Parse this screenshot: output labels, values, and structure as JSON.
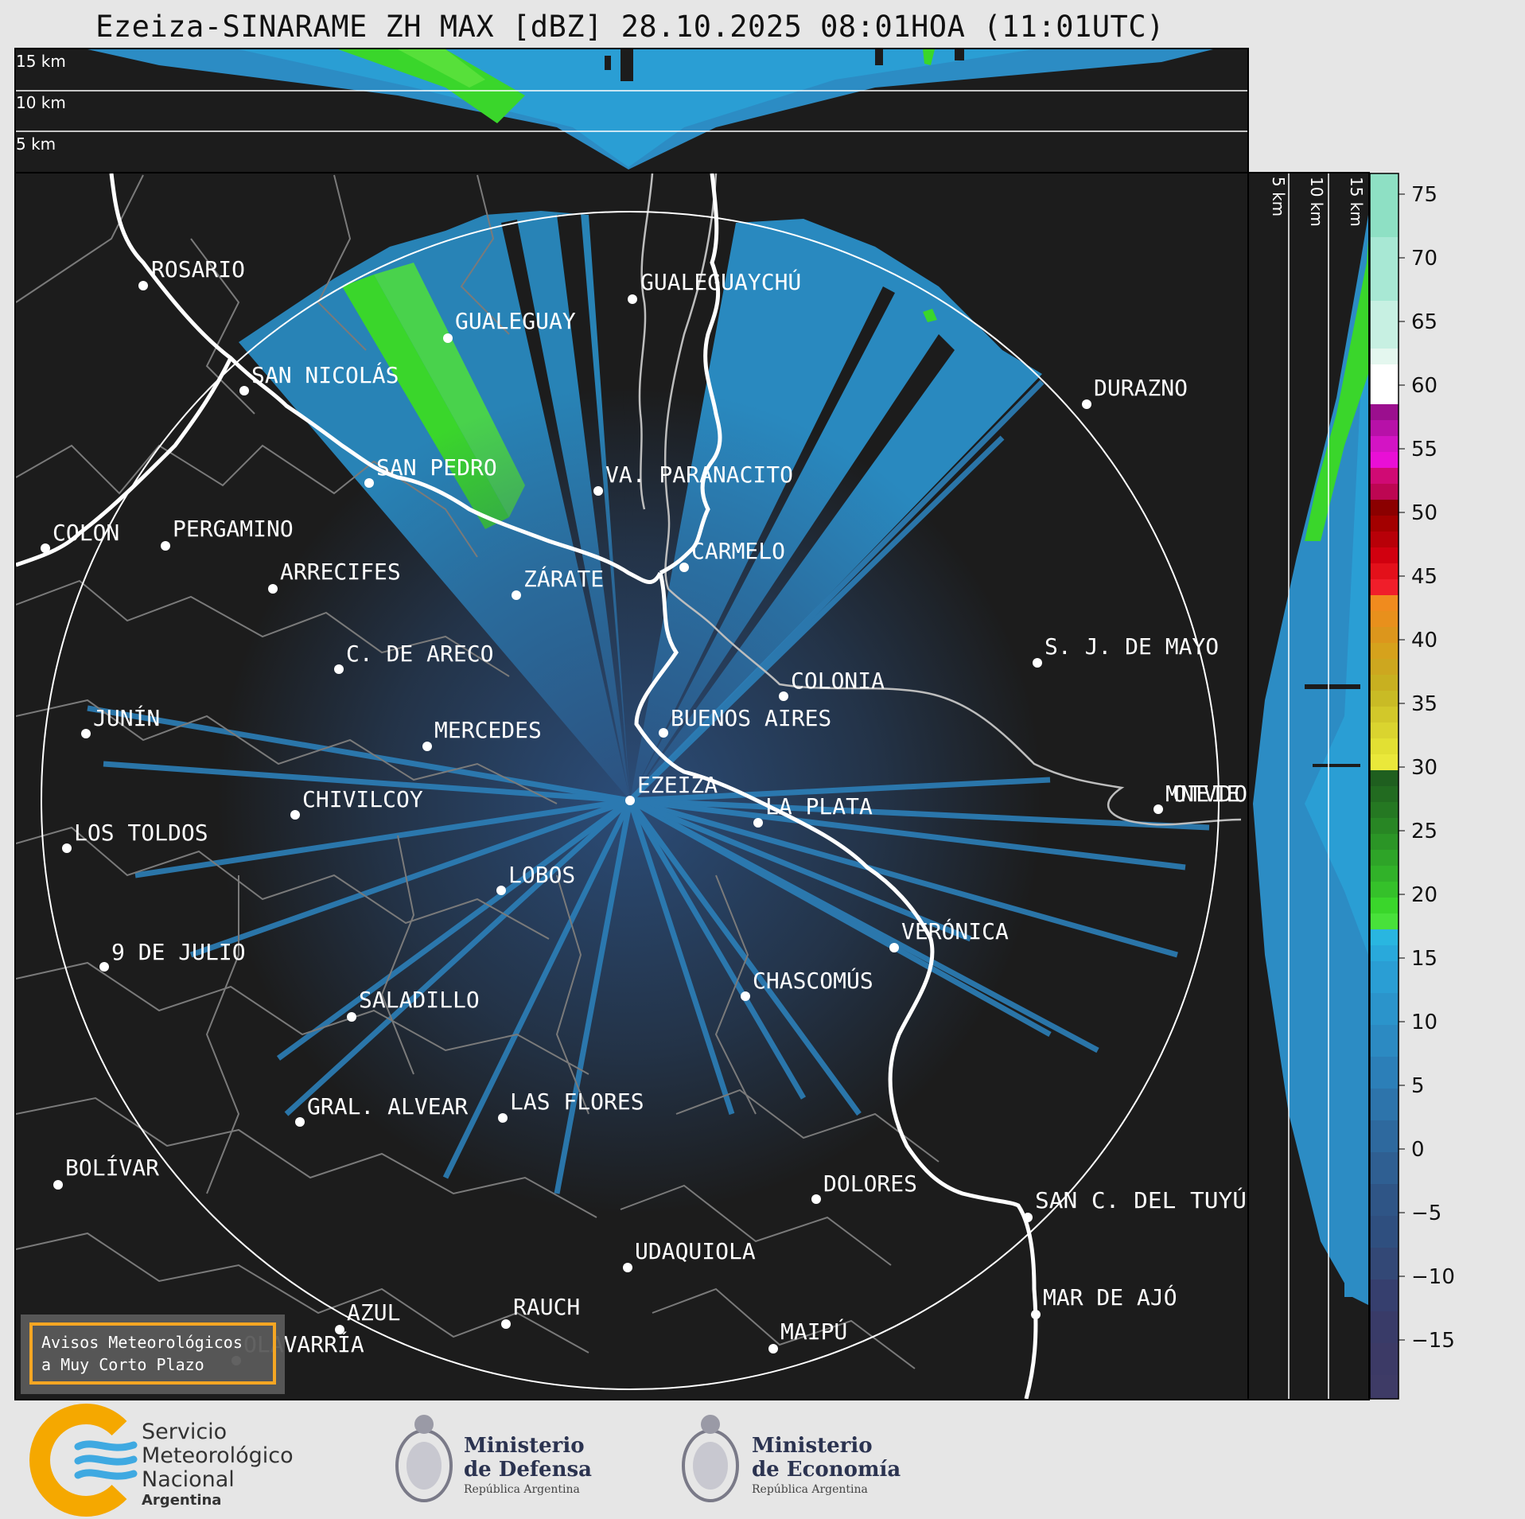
{
  "title": "Ezeiza-SINARAME ZH MAX [dBZ] 28.10.2025 08:01HOA (11:01UTC)",
  "top_panel": {
    "height_labels": [
      "15 km",
      "10 km",
      "5 km"
    ]
  },
  "side_panel": {
    "height_labels": [
      "5 km",
      "10 km",
      "15 km"
    ]
  },
  "map": {
    "background_color": "#1c1c1c",
    "range_ring_color": "#ffffff",
    "cities": [
      {
        "name": "ROSARIO"
      },
      {
        "name": "GUALEGUAYCHÚ"
      },
      {
        "name": "GUALEGUAY"
      },
      {
        "name": "SAN NICOLÁS"
      },
      {
        "name": "DURAZNO"
      },
      {
        "name": "SAN PEDRO"
      },
      {
        "name": "VA. PARANACITO"
      },
      {
        "name": "COLON"
      },
      {
        "name": "PERGAMINO"
      },
      {
        "name": "CARMELO"
      },
      {
        "name": "ARRECIFES"
      },
      {
        "name": "ZÁRATE"
      },
      {
        "name": "S. J. DE MAYO"
      },
      {
        "name": "C. DE ARECO"
      },
      {
        "name": "COLONIA"
      },
      {
        "name": "JUNÍN"
      },
      {
        "name": "BUENOS AIRES"
      },
      {
        "name": "MERCEDES"
      },
      {
        "name": "EZEIZA"
      },
      {
        "name": "MONTEVIDEO"
      },
      {
        "name": "CHIVILCOY"
      },
      {
        "name": "LA PLATA"
      },
      {
        "name": "LOS TOLDOS"
      },
      {
        "name": "LOBOS"
      },
      {
        "name": "VERÓNICA"
      },
      {
        "name": "9 DE JULIO"
      },
      {
        "name": "CHASCOMÚS"
      },
      {
        "name": "SALADILLO"
      },
      {
        "name": "GRAL. ALVEAR"
      },
      {
        "name": "LAS FLORES"
      },
      {
        "name": "BOLÍVAR"
      },
      {
        "name": "DOLORES"
      },
      {
        "name": "SAN C. DEL TUYÚ"
      },
      {
        "name": "UDAQUIOLA"
      },
      {
        "name": "MAR DE AJÓ"
      },
      {
        "name": "AZUL"
      },
      {
        "name": "RAUCH"
      },
      {
        "name": "OLAVARRÍA"
      },
      {
        "name": "MAIPÚ"
      }
    ],
    "notice": {
      "line1": "Avisos Meteorológicos",
      "line2": "a Muy Corto Plazo",
      "border_color": "#f5a623"
    }
  },
  "colorbar": {
    "ticks": [
      "75",
      "70",
      "65",
      "60",
      "55",
      "50",
      "45",
      "40",
      "35",
      "30",
      "25",
      "20",
      "15",
      "10",
      "5",
      "0",
      "−5",
      "−10",
      "−15"
    ],
    "colors": {
      "green": "#3ad62b",
      "cyan": "#29a9db",
      "blue": "#2c7fb8",
      "dark_blue": "#2f4f7f"
    }
  },
  "footer": {
    "smn": {
      "line1": "Servicio",
      "line2": "Meteorológico",
      "line3": "Nacional",
      "country": "Argentina"
    },
    "defensa": {
      "line1": "Ministerio",
      "line2": "de Defensa",
      "line3": "República Argentina"
    },
    "economia": {
      "line1": "Ministerio",
      "line2": "de Economía",
      "line3": "República Argentina"
    }
  }
}
